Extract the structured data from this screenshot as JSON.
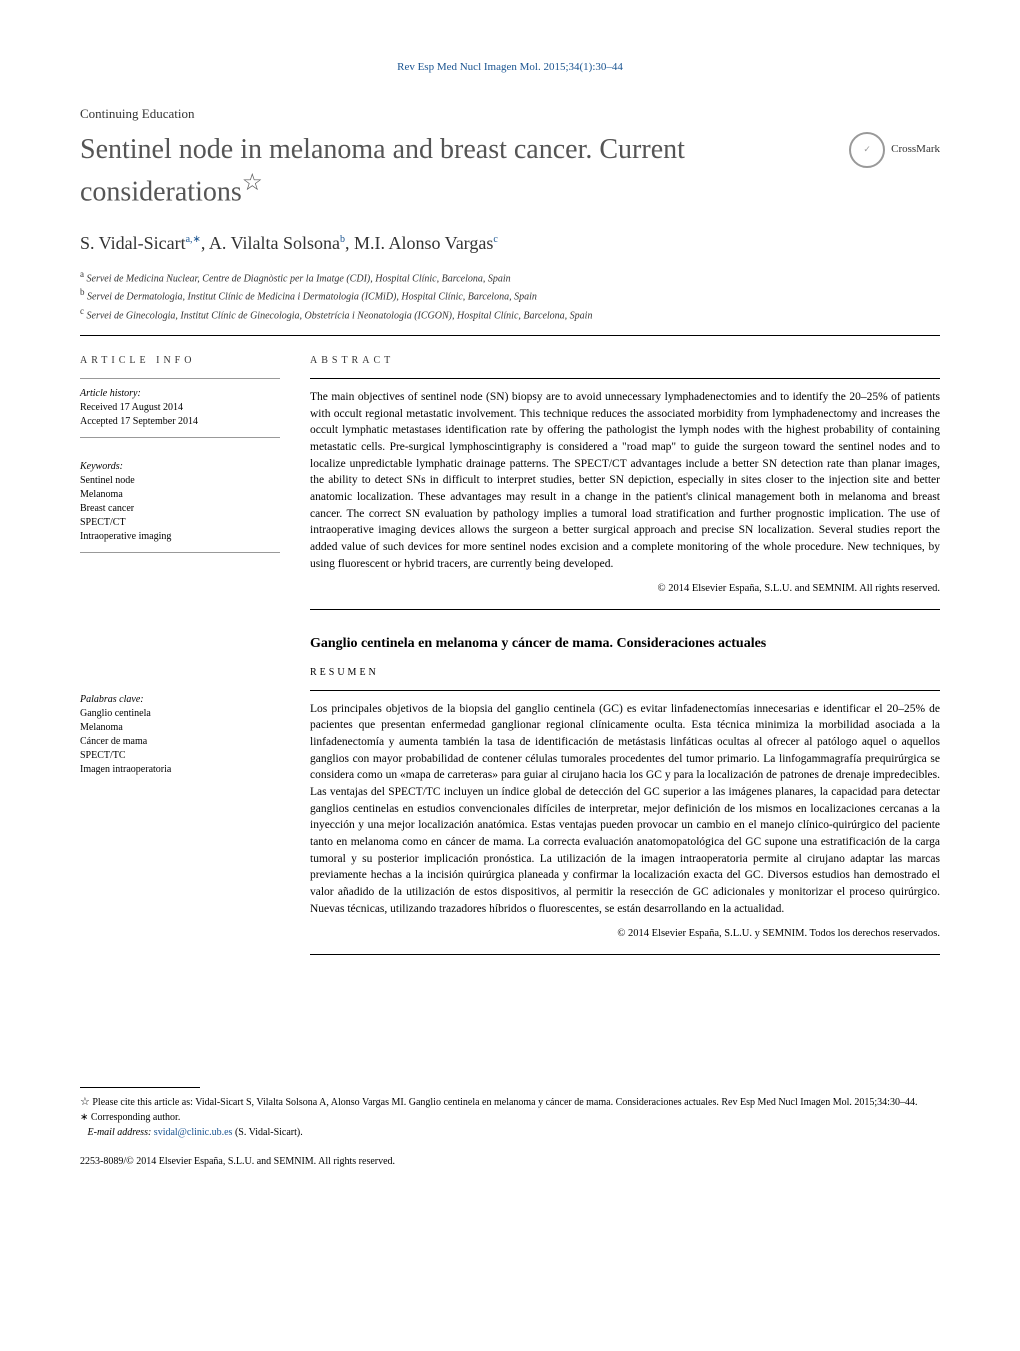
{
  "journal_ref": "Rev Esp Med Nucl Imagen Mol. 2015;34(1):30–44",
  "section_label": "Continuing Education",
  "title": "Sentinel node in melanoma and breast cancer. Current considerations",
  "title_star": "☆",
  "crossmark_label": "CrossMark",
  "authors_html": "S. Vidal-Sicart",
  "author1_sup": "a,∗",
  "author2": ",   A. Vilalta Solsona",
  "author2_sup": "b",
  "author3": ", M.I. Alonso Vargas",
  "author3_sup": "c",
  "affil_a": "Servei de Medicina Nuclear, Centre de Diagnòstic per la Imatge (CDI), Hospital Clínic, Barcelona, Spain",
  "affil_b": "Servei de Dermatologia, Institut Clínic de Medicina i Dermatologia (ICMiD), Hospital Clínic, Barcelona, Spain",
  "affil_c": "Servei de Ginecologia, Institut Clínic de Ginecologia, Obstetrícia i Neonatologia (ICGON), Hospital Clínic, Barcelona, Spain",
  "article_info_heading": "article info",
  "abstract_heading": "abstract",
  "history_label": "Article history:",
  "received": "Received 17 August 2014",
  "accepted": "Accepted 17 September 2014",
  "keywords_label": "Keywords:",
  "keywords": [
    "Sentinel node",
    "Melanoma",
    "Breast cancer",
    "SPECT/CT",
    "Intraoperative imaging"
  ],
  "abstract_en": "The main objectives of sentinel node (SN) biopsy are to avoid unnecessary lymphadenectomies and to identify the 20–25% of patients with occult regional metastatic involvement. This technique reduces the associated morbidity from lymphadenectomy and increases the occult lymphatic metastases identification rate by offering the pathologist the lymph nodes with the highest probability of containing metastatic cells. Pre-surgical lymphoscintigraphy is considered a \"road map\" to guide the surgeon toward the sentinel nodes and to localize unpredictable lymphatic drainage patterns. The SPECT/CT advantages include a better SN detection rate than planar images, the ability to detect SNs in difficult to interpret studies, better SN depiction, especially in sites closer to the injection site and better anatomic localization. These advantages may result in a change in the patient's clinical management both in melanoma and breast cancer. The correct SN evaluation by pathology implies a tumoral load stratification and further prognostic implication. The use of intraoperative imaging devices allows the surgeon a better surgical approach and precise SN localization. Several studies report the added value of such devices for more sentinel nodes excision and a complete monitoring of the whole procedure. New techniques, by using fluorescent or hybrid tracers, are currently being developed.",
  "copyright_en": "© 2014 Elsevier España, S.L.U. and SEMNIM. All rights reserved.",
  "title_es": "Ganglio centinela en melanoma y cáncer de mama. Consideraciones actuales",
  "resumen_heading": "resumen",
  "palabras_label": "Palabras clave:",
  "palabras": [
    "Ganglio centinela",
    "Melanoma",
    "Cáncer de mama",
    "SPECT/TC",
    "Imagen intraoperatoria"
  ],
  "abstract_es": "Los principales objetivos de la biopsia del ganglio centinela (GC) es evitar linfadenectomías innecesarias e identificar el 20–25% de pacientes que presentan enfermedad ganglionar regional clínicamente oculta. Esta técnica minimiza la morbilidad asociada a la linfadenectomía y aumenta también la tasa de identificación de metástasis linfáticas ocultas al ofrecer al patólogo aquel o aquellos ganglios con mayor probabilidad de contener células tumorales procedentes del tumor primario. La linfogammagrafía prequirúrgica se considera como un «mapa de carreteras» para guiar al cirujano hacia los GC y para la localización de patrones de drenaje impredecibles. Las ventajas del SPECT/TC incluyen un índice global de detección del GC superior a las imágenes planares, la capacidad para detectar ganglios centinelas en estudios convencionales difíciles de interpretar, mejor definición de los mismos en localizaciones cercanas a la inyección y una mejor localización anatómica. Estas ventajas pueden provocar un cambio en el manejo clínico-quirúrgico del paciente tanto en melanoma como en cáncer de mama. La correcta evaluación anatomopatológica del GC supone una estratificación de la carga tumoral y su posterior implicación pronóstica. La utilización de la imagen intraoperatoria permite al cirujano adaptar las marcas previamente hechas a la incisión quirúrgica planeada y confirmar la localización exacta del GC. Diversos estudios han demostrado el valor añadido de la utilización de estos dispositivos, al permitir la resección de GC adicionales y monitorizar el proceso quirúrgico. Nuevas técnicas, utilizando trazadores híbridos o fluorescentes, se están desarrollando en la actualidad.",
  "copyright_es": "© 2014 Elsevier España, S.L.U. y SEMNIM. Todos los derechos reservados.",
  "cite_note": "Please cite this article as: Vidal-Sicart S, Vilalta Solsona A, Alonso Vargas MI. Ganglio centinela en melanoma y cáncer de mama. Consideraciones actuales. Rev Esp Med Nucl Imagen Mol. 2015;34:30–44.",
  "corr_label": "Corresponding author.",
  "email_label": "E-mail address: ",
  "email": "svidal@clinic.ub.es",
  "email_suffix": " (S. Vidal-Sicart).",
  "issn_line": "2253-8089/© 2014 Elsevier España, S.L.U. and SEMNIM. All rights reserved."
}
